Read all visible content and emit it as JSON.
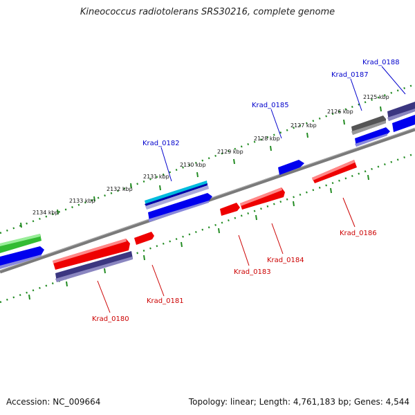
{
  "title": "Kineococcus radiotolerans SRS30216, complete genome",
  "footer": {
    "accession": "Accession: NC_009664",
    "summary": "Topology: linear; Length: 4,761,183 bp; Genes: 4,544"
  },
  "colors": {
    "backbone": "#7a7a7a",
    "tick_dots": "#228b22",
    "forward_label": "#0000cc",
    "reverse_label": "#cc0000",
    "red_gene": "#ee0000",
    "blue_gene": "#0000ee",
    "navy_gene": "#3b3680",
    "gray_gene": "#555555",
    "green_gene": "#33bb33",
    "cyan_gene": "#00bbdd"
  },
  "kbp_labels": [
    "2134 kbp",
    "2133 kbp",
    "2132 kbp",
    "2131 kbp",
    "2130 kbp",
    "2129 kbp",
    "2128 kbp",
    "2127 kbp",
    "2126 kbp",
    "2125 kbp"
  ],
  "forward_labels": [
    "Krad_0182",
    "Krad_0185",
    "Krad_0187",
    "Krad_0188"
  ],
  "reverse_labels": [
    "Krad_0180",
    "Krad_0181",
    "Krad_0183",
    "Krad_0184",
    "Krad_0186"
  ]
}
